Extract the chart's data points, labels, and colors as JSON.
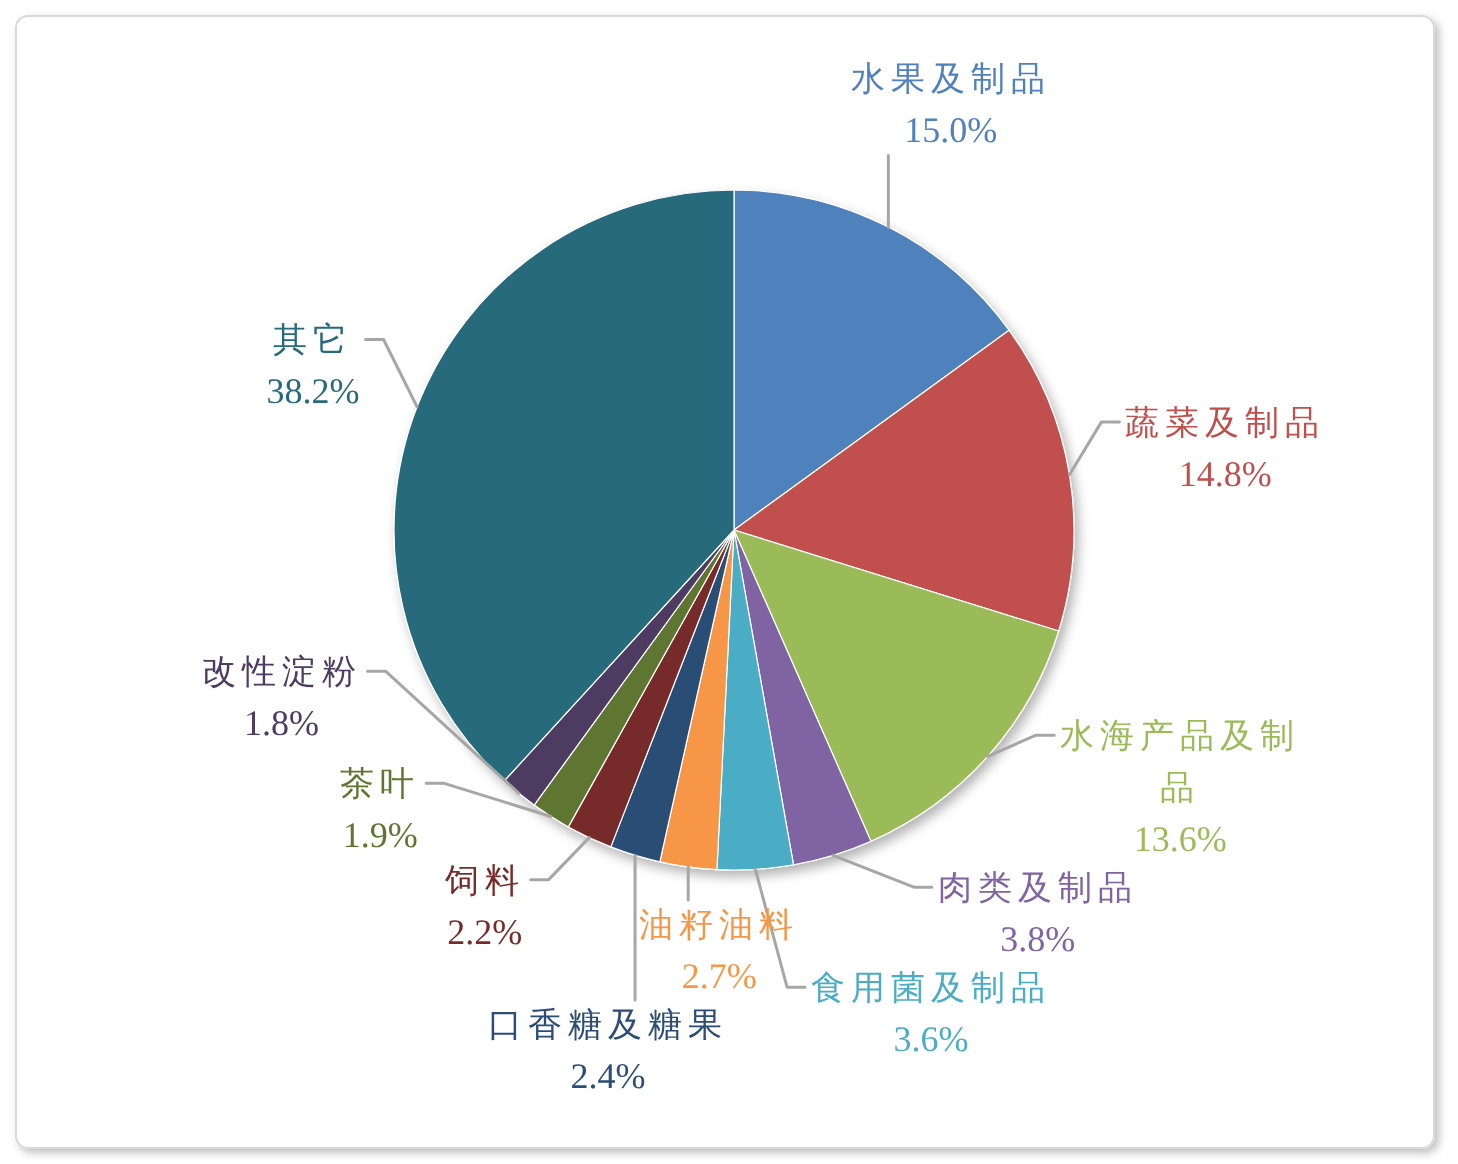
{
  "chart_data": {
    "type": "pie",
    "categories": [
      "水果及制品",
      "蔬菜及制品",
      "水海产品及制品",
      "肉类及制品",
      "食用菌及制品",
      "油籽油料",
      "口香糖及糖果",
      "饲料",
      "茶叶",
      "改性淀粉",
      "其它"
    ],
    "values": [
      15.0,
      14.8,
      13.6,
      3.8,
      3.6,
      2.7,
      2.4,
      2.2,
      1.9,
      1.8,
      38.2
    ],
    "value_labels": [
      "15.0%",
      "14.8%",
      "13.6%",
      "3.8%",
      "3.6%",
      "2.7%",
      "2.4%",
      "2.2%",
      "1.9%",
      "1.8%",
      "38.2%"
    ],
    "colors": [
      "#4f81bd",
      "#c0504d",
      "#9bbb59",
      "#8064a2",
      "#4bacc6",
      "#f79646",
      "#2c4d75",
      "#772c2a",
      "#5f7530",
      "#4d3b62",
      "#276a7c"
    ]
  }
}
